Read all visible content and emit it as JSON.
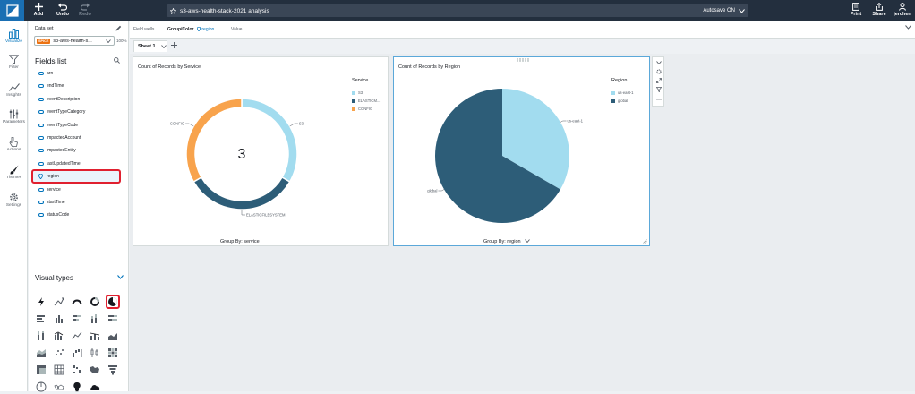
{
  "topbar": {
    "actions": [
      {
        "icon": "plus-icon",
        "label": "Add"
      },
      {
        "icon": "undo-icon",
        "label": "Undo"
      },
      {
        "icon": "redo-icon",
        "label": "Redo"
      }
    ],
    "title": "s3-aws-health-stack-2021 analysis",
    "autosave": "Autosave ON",
    "right_actions": [
      {
        "icon": "print-icon",
        "label": "Print"
      },
      {
        "icon": "share-icon",
        "label": "Share"
      },
      {
        "icon": "user-icon",
        "label": "jerchen"
      }
    ]
  },
  "rail": {
    "items": [
      {
        "icon": "visualize-icon",
        "label": "Visualize",
        "active": true
      },
      {
        "icon": "filter-icon",
        "label": "Filter"
      },
      {
        "icon": "insights-icon",
        "label": "Insights"
      },
      {
        "icon": "parameters-icon",
        "label": "Parameters"
      },
      {
        "icon": "actions-icon",
        "label": "Actions"
      },
      {
        "icon": "themes-icon",
        "label": "Themes"
      },
      {
        "icon": "settings-icon",
        "label": "Settings"
      }
    ]
  },
  "panel": {
    "dataset_label": "Data set",
    "dataset_badge": "SPICE",
    "dataset_name": "s3-aws-health-s...",
    "dataset_percent": "100%",
    "fields_title": "Fields list",
    "fields": [
      "arn",
      "endTime",
      "eventDescription",
      "eventTypeCategory",
      "eventTypeCode",
      "impactedAccount",
      "impactedEntity",
      "lastUpdatedTime",
      "region",
      "service",
      "startTime",
      "statusCode"
    ],
    "selected_field": "region",
    "visual_types_title": "Visual types"
  },
  "wells": {
    "label": "Field wells",
    "group_label": "Group/Color",
    "group_value": "region",
    "value_label": "Value"
  },
  "sheets": {
    "tabs": [
      "Sheet 1"
    ]
  },
  "visual_service": {
    "title": "Count of Records by Service",
    "legend_title": "Service",
    "legend": [
      {
        "label": "S3",
        "color": "#a2dcef"
      },
      {
        "label": "ELASTICM...",
        "color": "#2d5d78"
      },
      {
        "label": "CONFIG",
        "color": "#f8a34c"
      }
    ],
    "center_value": "3",
    "slice_labels": [
      "S3",
      "ELASTICFILESYSTEM",
      "CONFIG"
    ],
    "group_by": "Group By: service",
    "chart_data": {
      "type": "pie",
      "variant": "donut",
      "categories": [
        "S3",
        "ELASTICFILESYSTEM",
        "CONFIG"
      ],
      "values": [
        1,
        1,
        1
      ],
      "colors": [
        "#a2dcef",
        "#2d5d78",
        "#f8a34c"
      ],
      "title": "Count of Records by Service"
    }
  },
  "visual_region": {
    "title": "Count of Records by Region",
    "legend_title": "Region",
    "legend": [
      {
        "label": "us-east-1",
        "color": "#a2dcef"
      },
      {
        "label": "global",
        "color": "#2d5d78"
      }
    ],
    "slice_labels": [
      "us-east-1",
      "global"
    ],
    "group_by": "Group By: region",
    "chart_data": {
      "type": "pie",
      "categories": [
        "us-east-1",
        "global"
      ],
      "values": [
        1,
        2
      ],
      "colors": [
        "#a2dcef",
        "#2d5d78"
      ],
      "title": "Count of Records by Region"
    }
  }
}
